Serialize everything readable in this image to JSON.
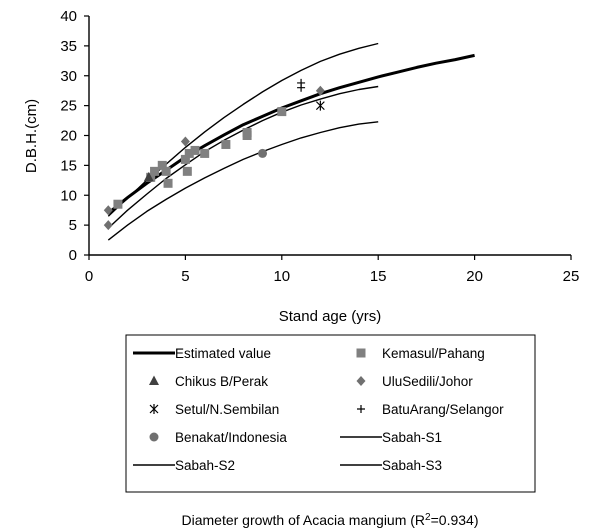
{
  "chart_data": {
    "type": "scatter",
    "title": "",
    "caption": {
      "prefix": "Diameter growth of Acacia mangium (R",
      "sup": "2",
      "suffix": "=0.934)"
    },
    "xlabel": "Stand age (yrs)",
    "ylabel": "D.B.H.(cm)",
    "xlim": [
      0,
      25
    ],
    "ylim": [
      0,
      40
    ],
    "xticks": [
      "0",
      "5",
      "10",
      "15",
      "20",
      "25"
    ],
    "yticks": [
      "0",
      "5",
      "10",
      "15",
      "20",
      "25",
      "30",
      "35",
      "40"
    ],
    "grid": false,
    "legend_position": "bottom",
    "series": [
      {
        "name": "Estimated value",
        "kind": "line",
        "color": "#000000",
        "x": [
          1,
          2,
          3,
          4,
          5,
          6,
          7,
          8,
          9,
          10,
          11,
          12,
          13,
          14,
          15,
          16,
          17,
          18,
          19,
          20
        ],
        "y": [
          7.0,
          9.6,
          12.0,
          14.2,
          16.4,
          18.3,
          20.1,
          21.8,
          23.2,
          24.6,
          25.8,
          27.0,
          28.0,
          28.9,
          29.8,
          30.6,
          31.4,
          32.1,
          32.7,
          33.4
        ]
      },
      {
        "name": "Kemasul/Pahang",
        "kind": "marker",
        "marker": "square",
        "color": "#808080",
        "x": [
          1.5,
          3.2,
          3.4,
          3.8,
          4.0,
          4.1,
          5.0,
          5.1,
          5.2,
          5.5,
          6.0,
          7.1,
          8.2,
          8.2,
          10.0
        ],
        "y": [
          8.5,
          13.0,
          14.0,
          15.0,
          14.0,
          12.0,
          16.0,
          14.0,
          17.0,
          17.5,
          17.0,
          18.5,
          20.0,
          20.5,
          24.0
        ]
      },
      {
        "name": "Chikus B/Perak",
        "kind": "marker",
        "marker": "triangle",
        "color": "#404040",
        "x": [
          3.1
        ],
        "y": [
          13.0
        ]
      },
      {
        "name": "UluSedili/Johor",
        "kind": "marker",
        "marker": "diamond",
        "color": "#707070",
        "x": [
          1.0,
          1.0,
          5.0,
          12.0
        ],
        "y": [
          7.5,
          5.0,
          19.0,
          27.5
        ]
      },
      {
        "name": "Setul/N.Sembilan",
        "kind": "marker",
        "marker": "asterisk",
        "color": "#000000",
        "x": [
          12.0
        ],
        "y": [
          25.0
        ]
      },
      {
        "name": "BatuArang/Selangor",
        "kind": "marker",
        "marker": "plus",
        "color": "#000000",
        "x": [
          11.0,
          11.0
        ],
        "y": [
          28.0,
          28.8
        ]
      },
      {
        "name": "Benakat/Indonesia",
        "kind": "marker",
        "marker": "circle",
        "color": "#707070",
        "x": [
          9.0
        ],
        "y": [
          17.0
        ]
      },
      {
        "name": "Sabah-S1",
        "kind": "line",
        "color": "#000000",
        "x": [
          1,
          2,
          3,
          4,
          5,
          6,
          7,
          8,
          9,
          10,
          11,
          12,
          13,
          14,
          15
        ],
        "y": [
          6.5,
          9.5,
          12.5,
          15.2,
          18.0,
          20.6,
          23.0,
          25.2,
          27.3,
          29.2,
          30.9,
          32.4,
          33.6,
          34.6,
          35.4
        ]
      },
      {
        "name": "Sabah-S2",
        "kind": "line",
        "color": "#000000",
        "x": [
          1,
          2,
          3,
          4,
          5,
          6,
          7,
          8,
          9,
          10,
          11,
          12,
          13,
          14,
          15
        ],
        "y": [
          4.5,
          7.5,
          10.2,
          12.8,
          15.1,
          17.3,
          19.2,
          20.9,
          22.5,
          23.9,
          25.1,
          26.1,
          27.0,
          27.7,
          28.2
        ]
      },
      {
        "name": "Sabah-S3",
        "kind": "line",
        "color": "#000000",
        "x": [
          1,
          2,
          3,
          4,
          5,
          6,
          7,
          8,
          9,
          10,
          11,
          12,
          13,
          14,
          15
        ],
        "y": [
          2.5,
          5.0,
          7.3,
          9.3,
          11.2,
          12.9,
          14.5,
          16.0,
          17.3,
          18.5,
          19.6,
          20.5,
          21.3,
          21.9,
          22.3
        ]
      }
    ]
  }
}
